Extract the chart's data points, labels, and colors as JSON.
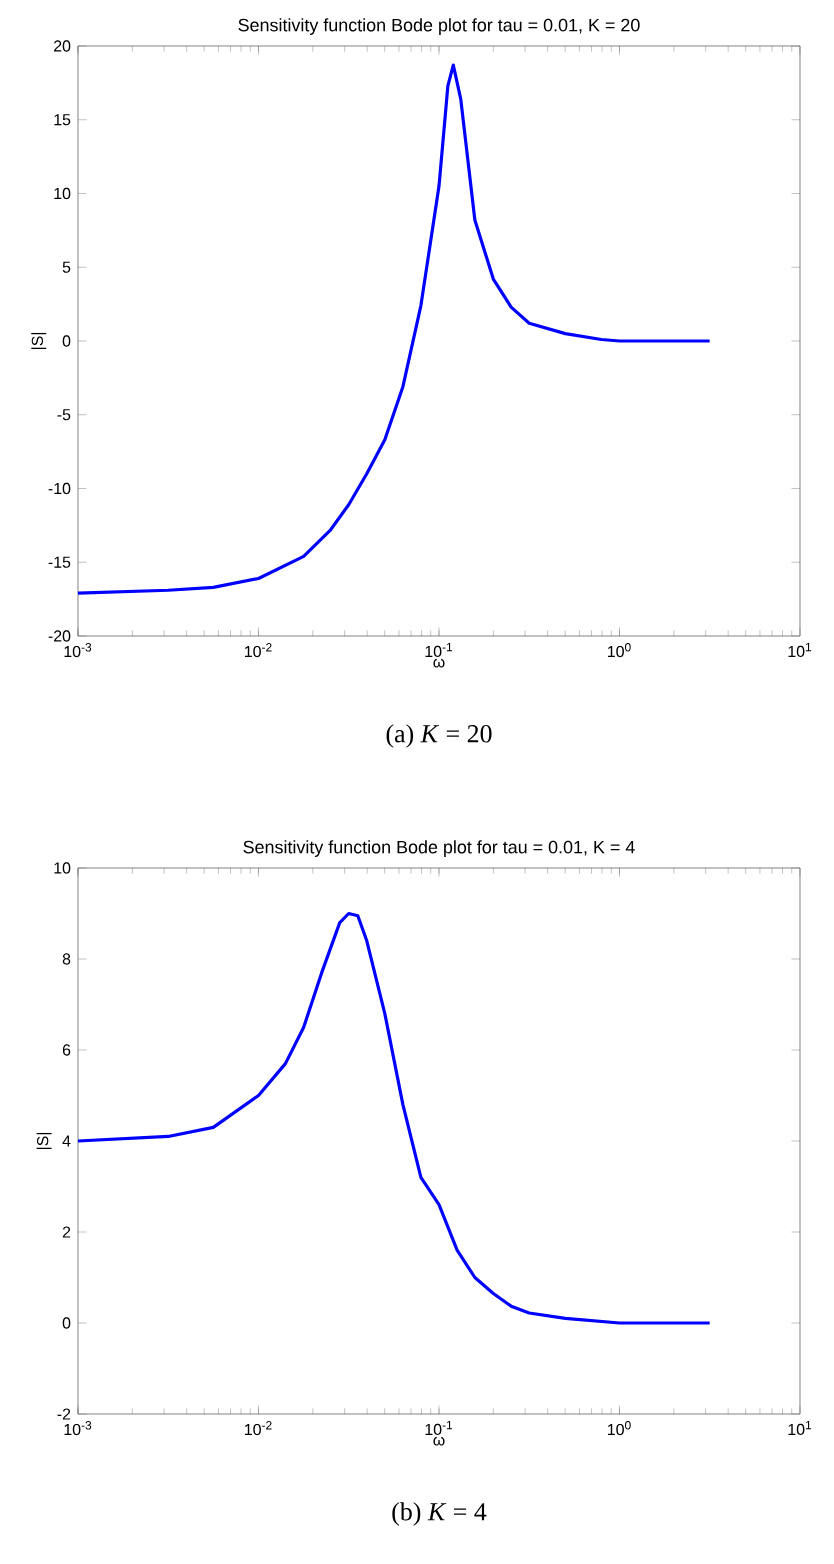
{
  "chart_data": [
    {
      "type": "line",
      "title": "Sensitivity function Bode plot for tau = 0.01, K = 20",
      "xlabel": "ω",
      "ylabel": "|S|",
      "log": "x",
      "color": "#0000ff",
      "x": [
        0.001,
        0.00316,
        0.00562,
        0.01,
        0.0178,
        0.0251,
        0.0316,
        0.0398,
        0.0501,
        0.0631,
        0.0794,
        0.1,
        0.112,
        0.12,
        0.132,
        0.158,
        0.2,
        0.251,
        0.316,
        0.501,
        0.794,
        1,
        3.16
      ],
      "values": [
        -17.1,
        -16.9,
        -16.7,
        -16.1,
        -14.6,
        -12.8,
        -11.1,
        -9.0,
        -6.7,
        -3.1,
        2.4,
        10.5,
        17.3,
        18.7,
        16.4,
        8.2,
        4.2,
        2.3,
        1.2,
        0.5,
        0.1,
        0,
        0
      ],
      "xlim": [
        0.001,
        10
      ],
      "ylim": [
        -20,
        20
      ],
      "xticks": [
        {
          "value": 0.001,
          "label": "10$^{-3}$"
        },
        {
          "value": 0.01,
          "label": "10$^{-2}$"
        },
        {
          "value": 0.1,
          "label": "10$^{-1}$"
        },
        {
          "value": 1,
          "label": "10$^{0}$"
        },
        {
          "value": 10,
          "label": "10$^{1}$"
        }
      ],
      "yticks": [
        -20,
        -15,
        -10,
        -5,
        0,
        5,
        10,
        15,
        20
      ],
      "annotations": [
        "(a) *K* = 20"
      ]
    },
    {
      "type": "line",
      "title": "Sensitivity function Bode plot for tau = 0.01, K = 4",
      "xlabel": "ω",
      "ylabel": "|S|",
      "log": "x",
      "color": "#0000ff",
      "x": [
        0.001,
        0.00316,
        0.00562,
        0.01,
        0.0141,
        0.0178,
        0.0224,
        0.0282,
        0.0316,
        0.0355,
        0.0398,
        0.0501,
        0.0631,
        0.0794,
        0.1,
        0.126,
        0.158,
        0.2,
        0.251,
        0.316,
        0.501,
        1,
        3.16
      ],
      "values": [
        4.0,
        4.1,
        4.3,
        5.0,
        5.7,
        6.5,
        7.7,
        8.8,
        9.0,
        8.95,
        8.4,
        6.8,
        4.8,
        3.2,
        2.6,
        1.6,
        1.0,
        0.65,
        0.37,
        0.22,
        0.1,
        0,
        0
      ],
      "xlim": [
        0.001,
        10
      ],
      "ylim": [
        -2,
        10
      ],
      "xticks": [
        {
          "value": 0.001,
          "label": "10$^{-3}$"
        },
        {
          "value": 0.01,
          "label": "10$^{-2}$"
        },
        {
          "value": 0.1,
          "label": "10$^{-1}$"
        },
        {
          "value": 1,
          "label": "10$^{0}$"
        },
        {
          "value": 10,
          "label": "10$^{1}$"
        }
      ],
      "yticks": [
        -2,
        0,
        2,
        4,
        6,
        8,
        10
      ],
      "annotations": [
        "(b) *K* = 4"
      ]
    }
  ]
}
